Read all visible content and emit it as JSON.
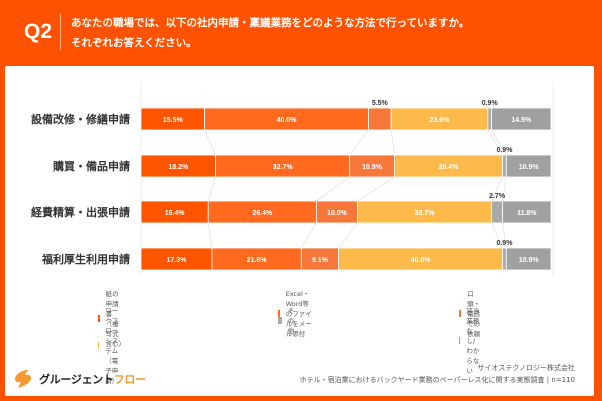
{
  "header": {
    "q_label": "Q2",
    "question_line1": "あなたの職場では、以下の社内申請・稟議業務をどのような方法で行っていますか。",
    "question_line2": "それぞれお答えください。"
  },
  "chart_data": {
    "type": "bar",
    "orientation": "horizontal",
    "stacked": true,
    "percent": true,
    "title": "あなたの職場では、以下の社内申請・稟議業務をどのような方法で行っていますか。それぞれお答えください。",
    "xlabel": "",
    "ylabel": "",
    "xlim": [
      0,
      100
    ],
    "grid": false,
    "legend_position": "bottom",
    "categories": [
      "設備改修・修繕申請",
      "購買・備品申請",
      "経費精算・出張申請",
      "福利厚生利用申請"
    ],
    "series": [
      {
        "name": "紙の申請書（複写式含む）",
        "color": "#FF5500",
        "values": [
          15.5,
          18.2,
          16.4,
          17.3
        ]
      },
      {
        "name": "Excel・Word等のファイルをメール添付",
        "color": "#FF6A1E",
        "values": [
          40.0,
          32.7,
          26.4,
          21.8
        ]
      },
      {
        "name": "口頭・電話での依頼",
        "color": "#F5773A",
        "values": [
          5.5,
          10.9,
          10.0,
          9.1
        ]
      },
      {
        "name": "ワークフローシステム（電子申請）",
        "color": "#FDBA4B",
        "values": [
          23.6,
          26.4,
          32.7,
          40.0
        ]
      },
      {
        "name": "その他",
        "color": "#A9A9A9",
        "values": [
          0.9,
          0.9,
          2.7,
          0.9
        ]
      },
      {
        "name": "該当業務なし/わからない",
        "color": "#A0A0A0",
        "values": [
          14.5,
          10.9,
          11.8,
          10.9
        ]
      }
    ],
    "label_text": [
      [
        "15.5%",
        "40.0%",
        "5.5%",
        "23.6%",
        "0.9%",
        "14.5%"
      ],
      [
        "18.2%",
        "32.7%",
        "10.9%",
        "26.4%",
        "0.9%",
        "10.9%"
      ],
      [
        "16.4%",
        "26.4%",
        "10.0%",
        "32.7%",
        "2.7%",
        "11.8%"
      ],
      [
        "17.3%",
        "21.8%",
        "9.1%",
        "40.0%",
        "0.9%",
        "10.9%"
      ]
    ],
    "outside_labels": [
      [
        false,
        false,
        true,
        false,
        true,
        false
      ],
      [
        false,
        false,
        false,
        false,
        true,
        false
      ],
      [
        false,
        false,
        false,
        false,
        true,
        false
      ],
      [
        false,
        false,
        false,
        false,
        true,
        false
      ]
    ],
    "connector_lines": true
  },
  "footer": {
    "logo_text_main": "グルージェント",
    "logo_text_accent": "フロー",
    "company": "サイオステクノロジー株式会社",
    "survey": "ホテル・宿泊業におけるバックヤード業務のペーパーレス化に関する実態調査 | n=110"
  }
}
